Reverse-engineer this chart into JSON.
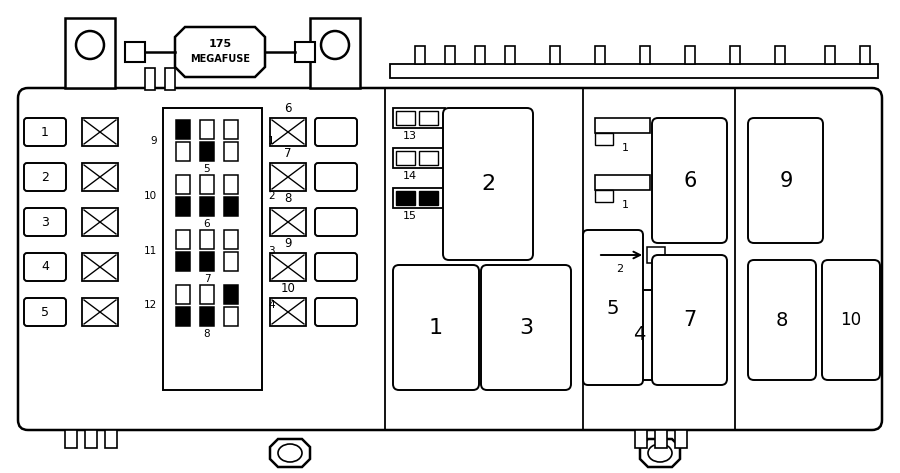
{
  "bg_color": "#ffffff",
  "line_color": "#000000",
  "fig_width": 9.0,
  "fig_height": 4.73
}
